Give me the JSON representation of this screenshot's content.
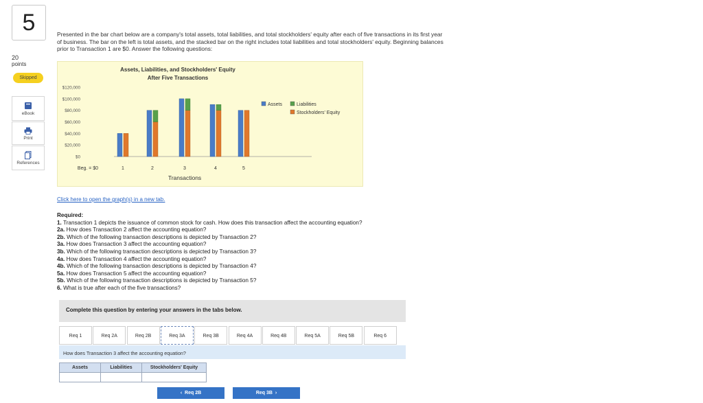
{
  "question": {
    "number": "5",
    "points_value": "20",
    "points_label": "points",
    "status": "Skipped"
  },
  "tools": {
    "ebook": "eBook",
    "print": "Print",
    "references": "References"
  },
  "prompt": "Presented in the bar chart below are a company's total assets, total liabilities, and total stockholders' equity after each of five transactions in its first year of business. The bar on the left is total assets, and the stacked bar on the right includes total liabilities and total stockholders' equity. Beginning balances prior to Transaction 1 are $0. Answer the following questions:",
  "chart_data": {
    "type": "bar",
    "title": "Assets, Liabilities, and Stockholders' Equity",
    "subtitle": "After Five Transactions",
    "xlabel": "Transactions",
    "ylabel": "",
    "categories": [
      "Beg. = $0",
      "1",
      "2",
      "3",
      "4",
      "5"
    ],
    "ylim": [
      0,
      120000
    ],
    "yticks": [
      "$0",
      "$20,000",
      "$40,000",
      "$60,000",
      "$80,000",
      "$100,000",
      "$120,000"
    ],
    "series": [
      {
        "name": "Assets",
        "values": [
          0,
          40000,
          80000,
          100000,
          90000,
          80000
        ],
        "color": "#4a7cc7"
      },
      {
        "name": "Liabilities",
        "values": [
          0,
          0,
          20000,
          20000,
          10000,
          0
        ],
        "color": "#58a04b"
      },
      {
        "name": "Stockholders' Equity",
        "values": [
          0,
          40000,
          60000,
          80000,
          80000,
          80000
        ],
        "color": "#e0782c"
      }
    ],
    "stacked_series": [
      "Liabilities",
      "Stockholders' Equity"
    ],
    "legend": "right",
    "grid": false
  },
  "graph_link": "Click here to open the graph(s) in a new tab.",
  "required": {
    "heading": "Required:",
    "items": [
      {
        "num": "1.",
        "text": " Transaction 1 depicts the issuance of common stock for cash. How does this transaction affect the accounting equation?"
      },
      {
        "num": "2a.",
        "text": " How does Transaction 2 affect the accounting equation?"
      },
      {
        "num": "2b.",
        "text": " Which of the following transaction descriptions is depicted by Transaction 2?"
      },
      {
        "num": "3a.",
        "text": " How does Transaction 3 affect the accounting equation?"
      },
      {
        "num": "3b.",
        "text": " Which of the following transaction descriptions is depicted by Transaction 3?"
      },
      {
        "num": "4a.",
        "text": " How does Transaction 4 affect the accounting equation?"
      },
      {
        "num": "4b.",
        "text": " Which of the following transaction descriptions is depicted by Transaction 4?"
      },
      {
        "num": "5a.",
        "text": " How does Transaction 5 affect the accounting equation?"
      },
      {
        "num": "5b.",
        "text": " Which of the following transaction descriptions is depicted by Transaction 5?"
      },
      {
        "num": "6.",
        "text": " What is true after each of the five transactions?"
      }
    ]
  },
  "complete_text": "Complete this question by entering your answers in the tabs below.",
  "tabs": [
    "Req 1",
    "Req 2A",
    "Req 2B",
    "Req 3A",
    "Req 3B",
    "Req 4A",
    "Req 4B",
    "Req 5A",
    "Req 5B",
    "Req 6"
  ],
  "active_tab": "Req 3A",
  "sub_question": "How does Transaction 3 affect the accounting equation?",
  "answer_table": {
    "headers": [
      "Assets",
      "Liabilities",
      "Stockholders' Equity"
    ],
    "values": [
      "",
      "",
      ""
    ]
  },
  "nav": {
    "prev": "Req 2B",
    "next": "Req 3B"
  }
}
